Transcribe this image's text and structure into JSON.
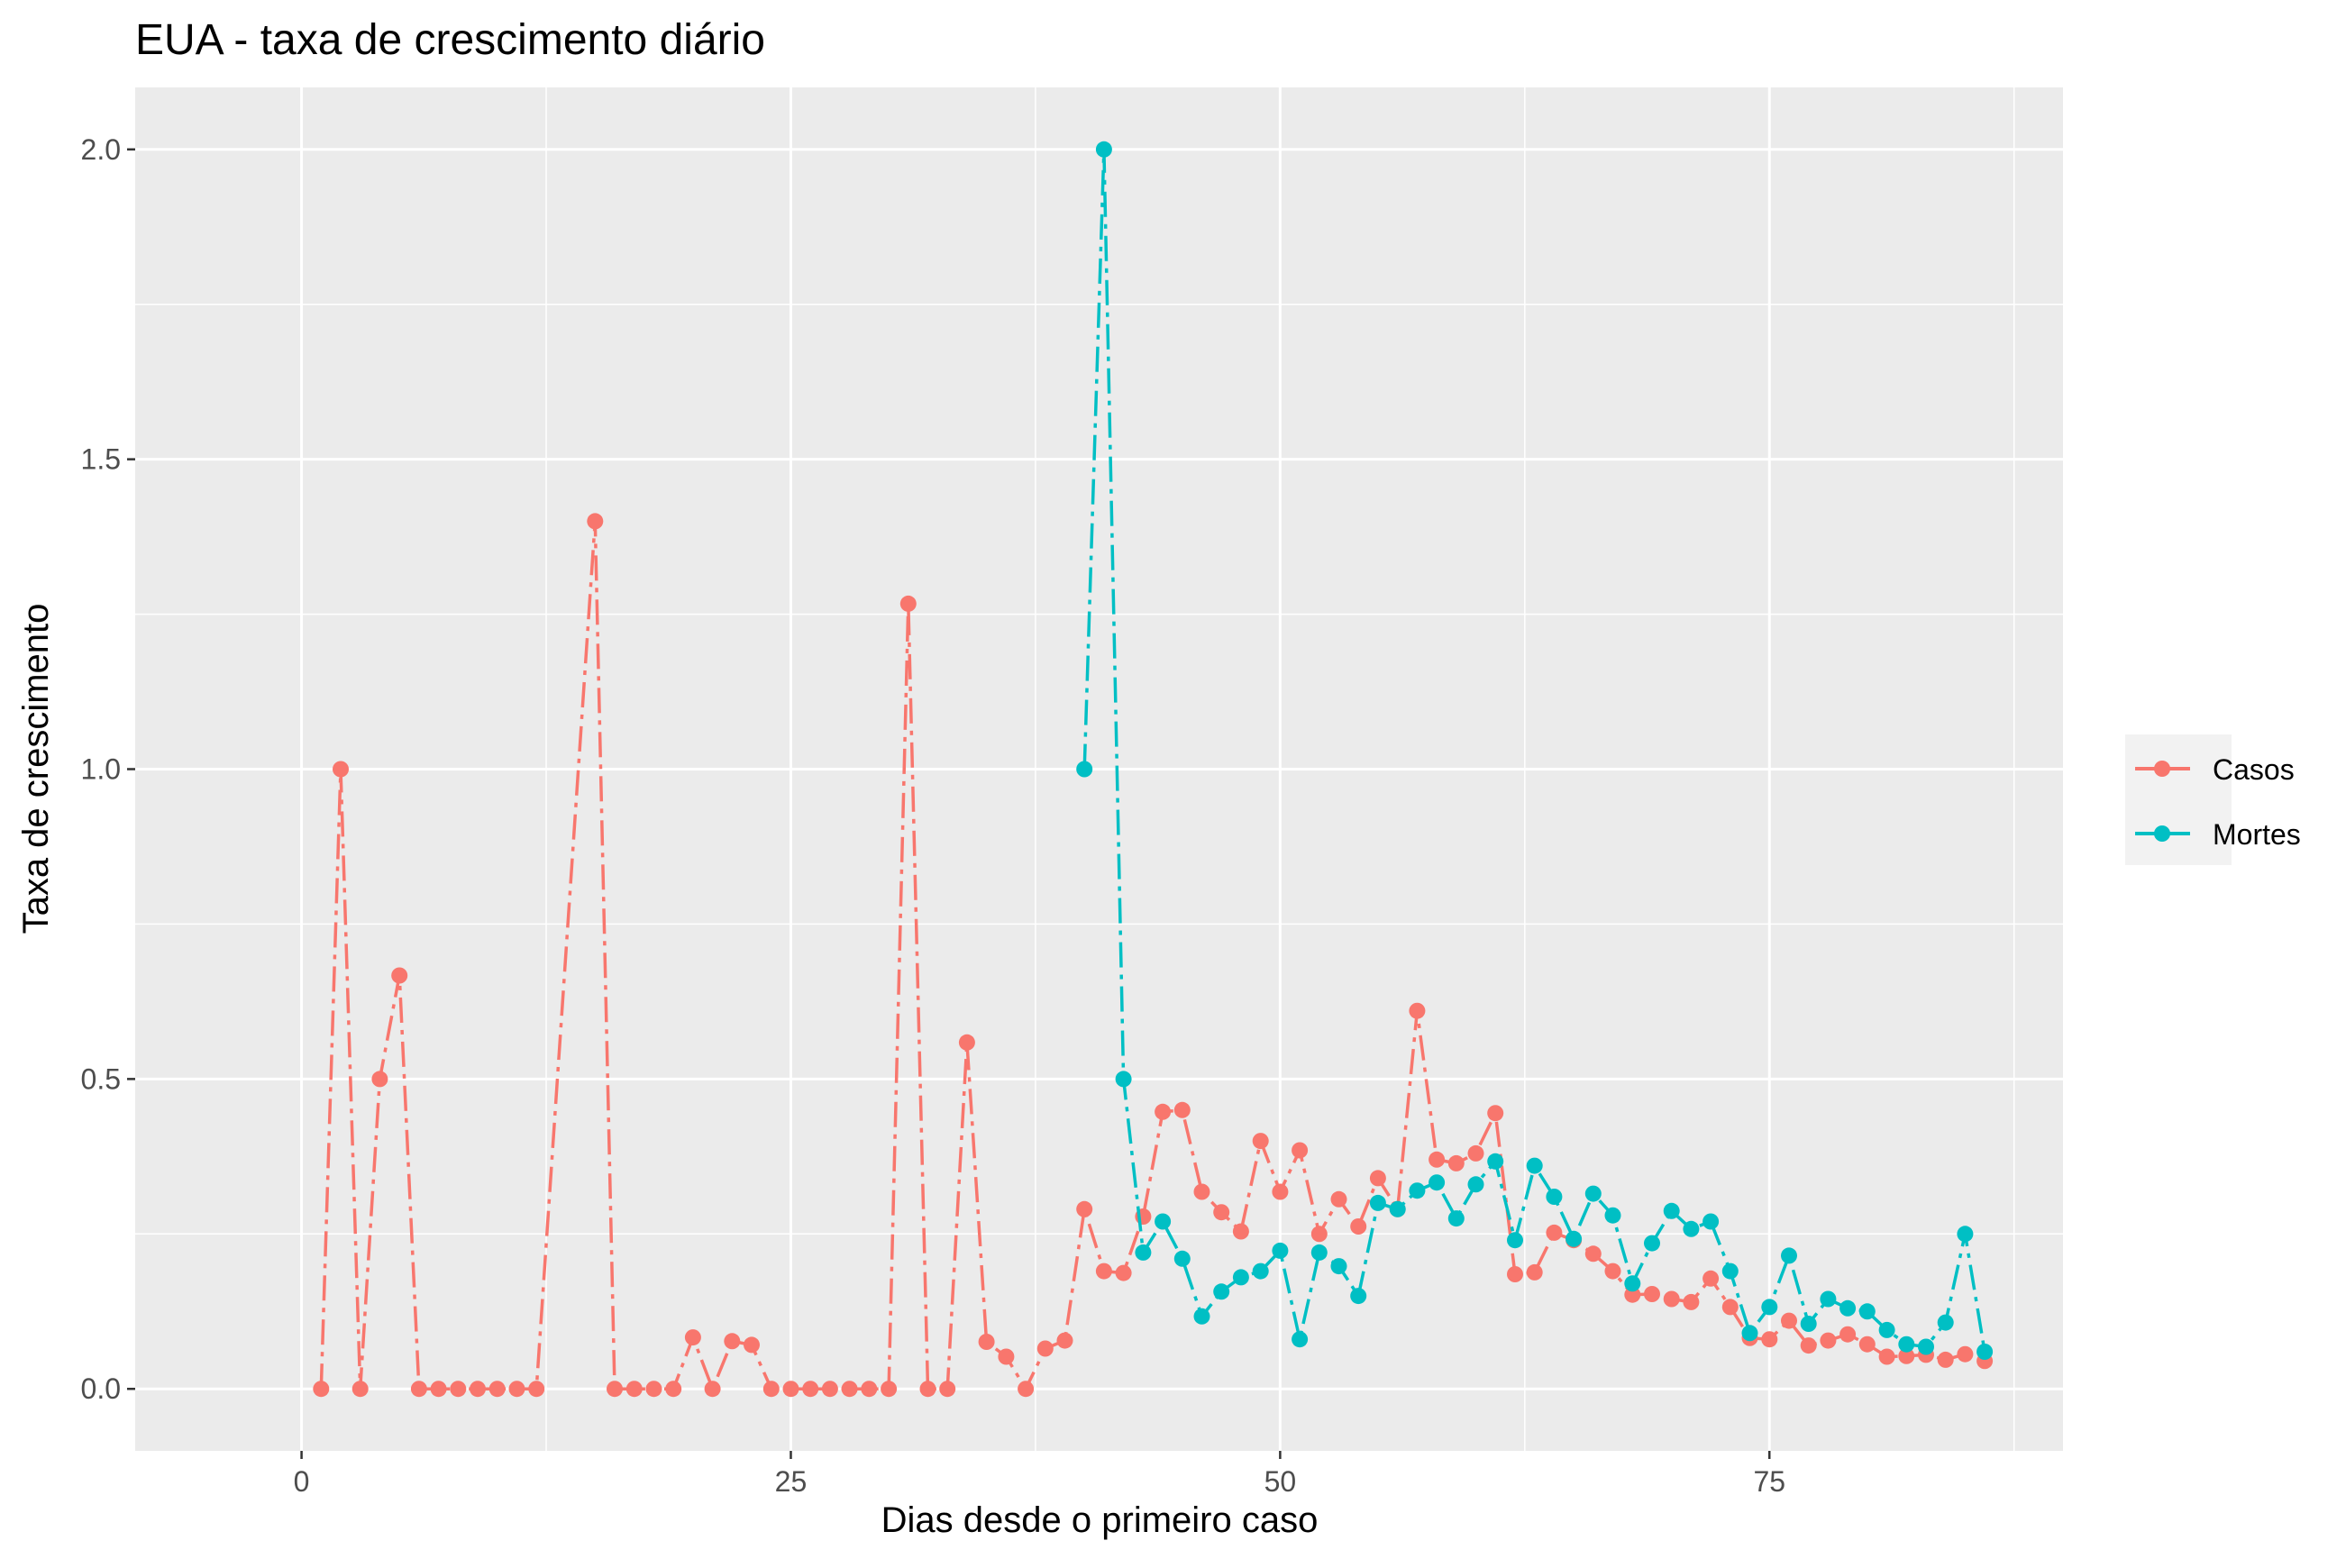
{
  "chart_data": {
    "type": "line",
    "title": "EUA - taxa de crescimento diário",
    "xlabel": "Dias desde o primeiro caso",
    "ylabel": "Taxa de crescimento",
    "xlim": [
      -8.5,
      90
    ],
    "ylim": [
      -0.1,
      2.1
    ],
    "x_ticks": [
      0,
      25,
      50,
      75
    ],
    "y_ticks": [
      0.0,
      0.5,
      1.0,
      1.5,
      2.0
    ],
    "x_tick_labels": [
      "0",
      "25",
      "50",
      "75"
    ],
    "y_tick_labels": [
      "0.0",
      "0.5",
      "1.0",
      "1.5",
      "2.0"
    ],
    "grid": true,
    "legend_position": "right",
    "series": [
      {
        "name": "Casos",
        "color": "#F8766D",
        "x": [
          1,
          2,
          3,
          4,
          5,
          6,
          7,
          8,
          9,
          10,
          11,
          12,
          15,
          16,
          17,
          18,
          19,
          20,
          21,
          22,
          23,
          24,
          25,
          26,
          27,
          28,
          29,
          30,
          31,
          32,
          33,
          34,
          35,
          36,
          37,
          38,
          39,
          40,
          41,
          42,
          43,
          44,
          45,
          46,
          47,
          48,
          49,
          50,
          51,
          52,
          53,
          54,
          55,
          56,
          57,
          58,
          59,
          60,
          61,
          62,
          63,
          64,
          65,
          66,
          67,
          68,
          69,
          70,
          71,
          72,
          73,
          74,
          75,
          76,
          77,
          78,
          79,
          80,
          81,
          82,
          83,
          84,
          85,
          86
        ],
        "values": [
          0,
          1.0,
          0,
          0.5,
          0.667,
          0,
          0,
          0,
          0,
          0,
          0,
          0,
          1.4,
          0,
          0,
          0,
          0,
          0.083,
          0,
          0.077,
          0.071,
          0,
          0,
          0,
          0,
          0,
          0,
          0,
          1.267,
          0,
          0,
          0.559,
          0.076,
          0.052,
          0,
          0.065,
          0.078,
          0.29,
          0.19,
          0.187,
          0.278,
          0.447,
          0.45,
          0.318,
          0.285,
          0.254,
          0.4,
          0.318,
          0.385,
          0.25,
          0.306,
          0.262,
          0.34,
          0.29,
          0.61,
          0.37,
          0.364,
          0.38,
          0.445,
          0.185,
          0.188,
          0.252,
          0.24,
          0.218,
          0.19,
          0.152,
          0.153,
          0.145,
          0.14,
          0.178,
          0.132,
          0.082,
          0.08,
          0.11,
          0.07,
          0.078,
          0.088,
          0.072,
          0.052,
          0.053,
          0.055,
          0.047,
          0.056,
          0.045
        ]
      },
      {
        "name": "Mortes",
        "color": "#00BFC4",
        "x": [
          40,
          41,
          42,
          43,
          44,
          45,
          46,
          47,
          48,
          49,
          50,
          51,
          52,
          53,
          54,
          55,
          56,
          57,
          58,
          59,
          60,
          61,
          62,
          63,
          64,
          65,
          66,
          67,
          68,
          69,
          70,
          71,
          72,
          73,
          74,
          75,
          76,
          77,
          78,
          79,
          80,
          81,
          82,
          83,
          84,
          85,
          86
        ],
        "values": [
          1.0,
          2.0,
          0.5,
          0.22,
          0.27,
          0.21,
          0.117,
          0.157,
          0.18,
          0.19,
          0.223,
          0.08,
          0.22,
          0.198,
          0.15,
          0.3,
          0.29,
          0.32,
          0.333,
          0.275,
          0.33,
          0.367,
          0.24,
          0.36,
          0.31,
          0.242,
          0.315,
          0.28,
          0.17,
          0.235,
          0.287,
          0.258,
          0.27,
          0.19,
          0.09,
          0.132,
          0.215,
          0.105,
          0.145,
          0.13,
          0.125,
          0.095,
          0.072,
          0.068,
          0.107,
          0.25,
          0.06
        ]
      }
    ]
  }
}
